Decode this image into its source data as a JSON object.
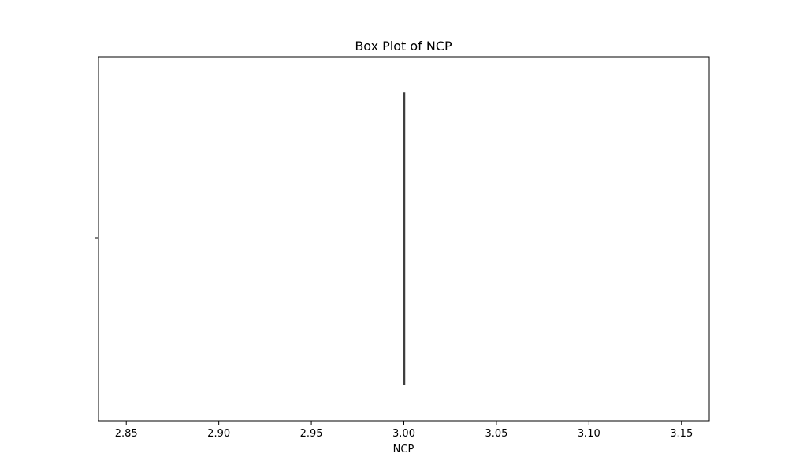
{
  "chart_data": {
    "type": "box",
    "title": "Box Plot of NCP",
    "xlabel": "NCP",
    "ylabel": "",
    "xlim": [
      2.835,
      3.165
    ],
    "xticks": [
      2.85,
      2.9,
      2.95,
      3.0,
      3.05,
      3.1,
      3.15
    ],
    "xtick_labels": [
      "2.85",
      "2.90",
      "2.95",
      "3.00",
      "3.05",
      "3.10",
      "3.15"
    ],
    "orientation": "horizontal",
    "grid": false,
    "box": {
      "min": 3.0,
      "q1": 3.0,
      "median": 3.0,
      "q3": 3.0,
      "max": 3.0
    },
    "colors": {
      "box_line": "#3f3f3f",
      "axis": "#000000",
      "background": "#ffffff"
    }
  }
}
